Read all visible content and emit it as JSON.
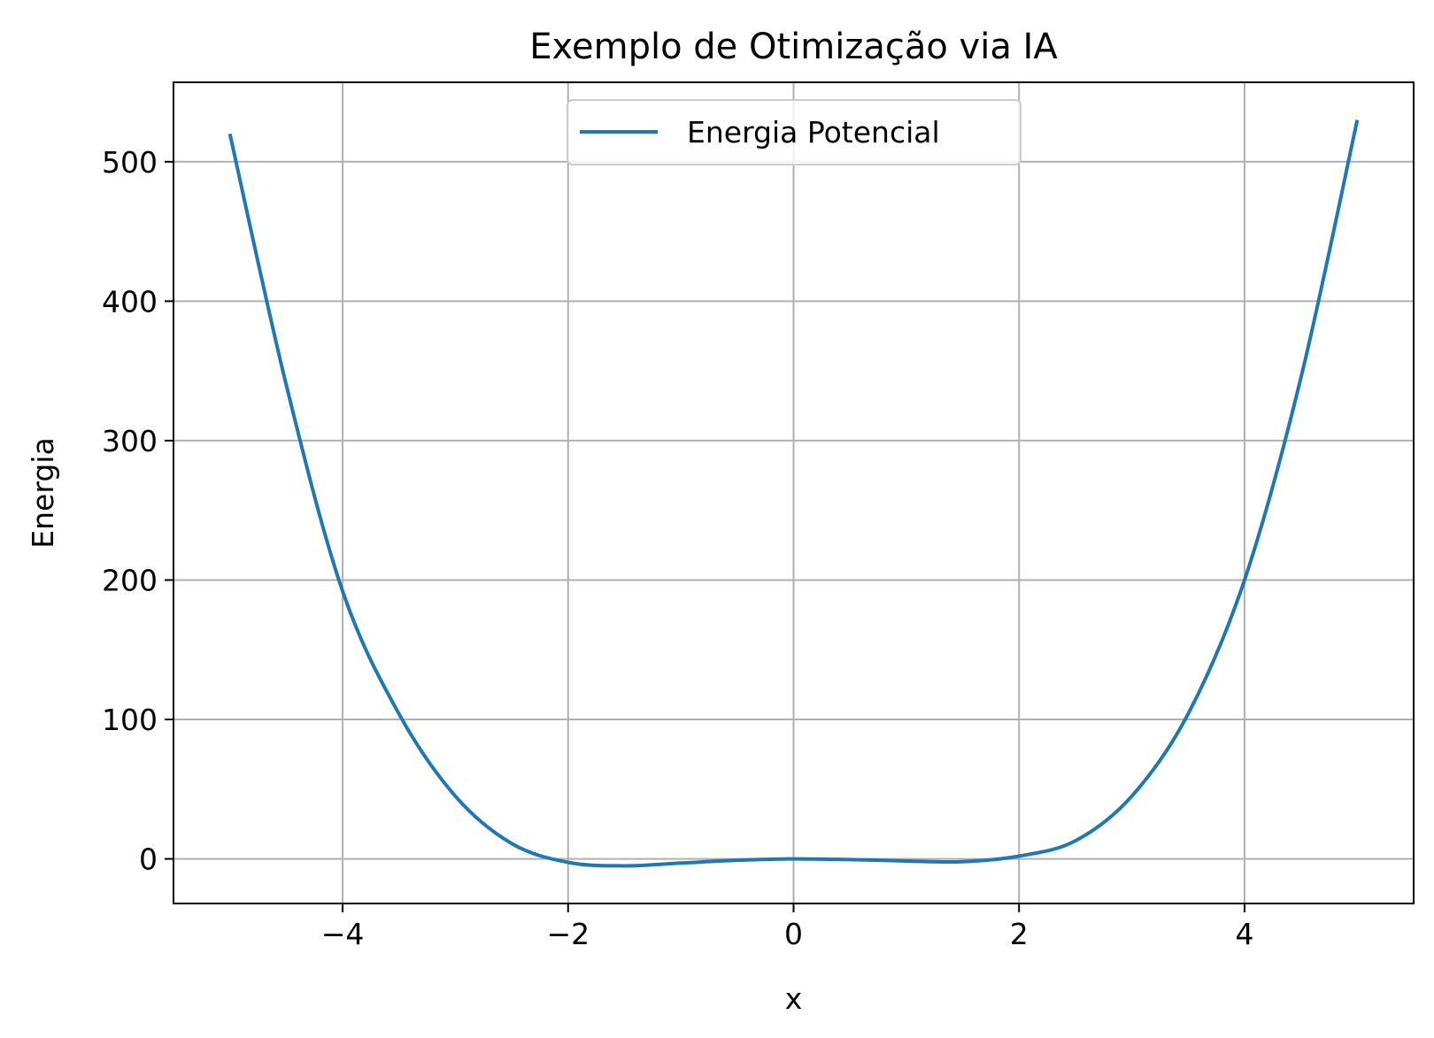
{
  "chart_data": {
    "type": "line",
    "title": "Exemplo de Otimização via IA",
    "xlabel": "x",
    "ylabel": "Energia",
    "xlim": [
      -5.5,
      5.5
    ],
    "ylim": [
      -32,
      557
    ],
    "x_ticks": [
      -4,
      -2,
      0,
      2,
      4
    ],
    "x_tick_labels": [
      "−4",
      "−2",
      "0",
      "2",
      "4"
    ],
    "y_ticks": [
      0,
      100,
      200,
      300,
      400,
      500
    ],
    "y_tick_labels": [
      "0",
      "100",
      "200",
      "300",
      "400",
      "500"
    ],
    "grid": true,
    "legend": {
      "position": "upper center"
    },
    "series": [
      {
        "name": "Energia Potencial",
        "color": "#1f77b4",
        "x": [
          -5.0,
          -4.5,
          -4.0,
          -3.5,
          -3.0,
          -2.5,
          -2.0,
          -1.5,
          -1.0,
          -0.5,
          0.0,
          0.5,
          1.0,
          1.5,
          2.0,
          2.5,
          3.0,
          3.5,
          4.0,
          4.5,
          5.0
        ],
        "y": [
          520,
          340,
          192,
          104,
          45,
          11,
          -2.5,
          -5,
          -3,
          -1,
          0,
          -0.5,
          -1.5,
          -2,
          2,
          13,
          45,
          104,
          200,
          345,
          530
        ]
      }
    ]
  }
}
